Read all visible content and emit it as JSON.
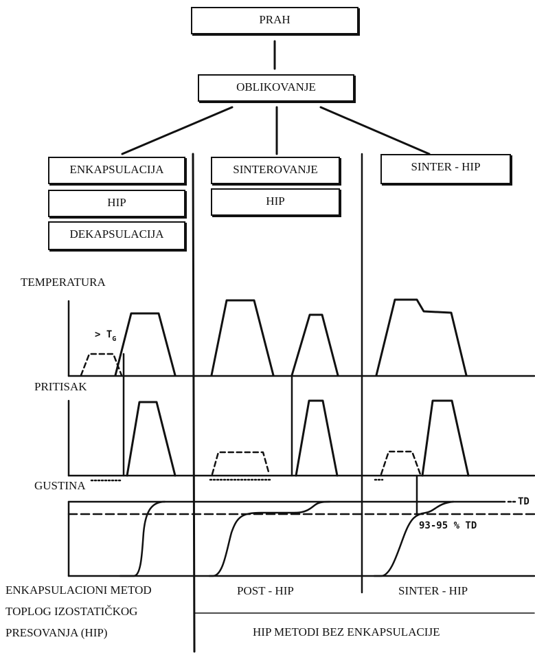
{
  "top": {
    "powder": "PRAH",
    "forming": "OBLIKOVANJE"
  },
  "columns": {
    "left": {
      "steps": [
        "ENKAPSULACIJA",
        "HIP",
        "DEKAPSULACIJA"
      ]
    },
    "middle": {
      "steps": [
        "SINTEROVANJE",
        "HIP"
      ]
    },
    "right": {
      "steps": [
        "SINTER - HIP"
      ]
    }
  },
  "row_labels": {
    "temperature": "TEMPERATURA",
    "pressure": "PRITISAK",
    "density": "GUSTINA"
  },
  "annotations": {
    "tg": "> T",
    "tg_sub": "G",
    "td": "TD",
    "partial_density": "93-95 % TD"
  },
  "bottom": {
    "left_method": [
      "ENKAPSULACIONI METOD",
      "TOPLOG IZOSTATIČKOG",
      "PRESOVANJA (HIP)"
    ],
    "post_hip": "POST - HIP",
    "sinter_hip": "SINTER - HIP",
    "no_encapsulation": "HIP METODI BEZ ENKAPSULACIJE"
  }
}
